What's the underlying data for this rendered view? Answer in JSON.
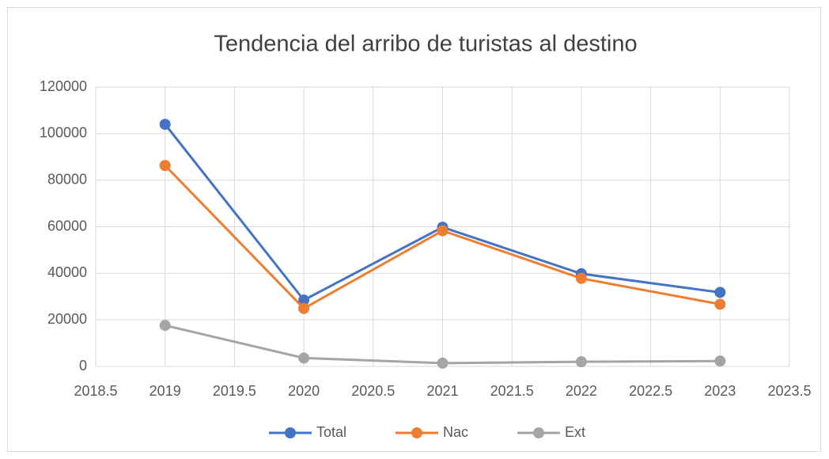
{
  "chart_data": {
    "type": "line",
    "title": "Tendencia del arribo de turistas al destino",
    "x": [
      2019,
      2020,
      2021,
      2022,
      2023
    ],
    "series": [
      {
        "name": "Total",
        "color": "#4472c4",
        "values": [
          104000,
          28500,
          59800,
          39800,
          31800
        ]
      },
      {
        "name": "Nac",
        "color": "#ed7d31",
        "values": [
          86300,
          24900,
          58300,
          37800,
          26700
        ]
      },
      {
        "name": "Ext",
        "color": "#a5a5a5",
        "values": [
          17600,
          3600,
          1400,
          2000,
          2300
        ]
      }
    ],
    "xlim": [
      2018.5,
      2023.5
    ],
    "xticks": [
      2018.5,
      2019,
      2019.5,
      2020,
      2020.5,
      2021,
      2021.5,
      2022,
      2022.5,
      2023,
      2023.5
    ],
    "ylim": [
      0,
      120000
    ],
    "yticks": [
      0,
      20000,
      40000,
      60000,
      80000,
      100000,
      120000
    ],
    "grid": true,
    "legend": "bottom"
  }
}
